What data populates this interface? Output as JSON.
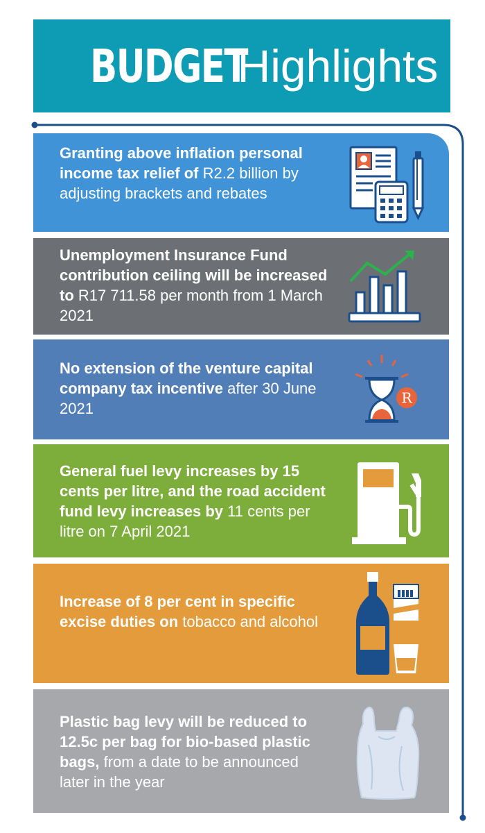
{
  "header": {
    "title_bold": "BUDGET",
    "title_light": "Highlights"
  },
  "colors": {
    "header_bg": "#0d9cb3",
    "line": "#1b4f8c",
    "panel1": "#3f93d6",
    "panel2": "#6c6f73",
    "panel3": "#527eb7",
    "panel4": "#7dae3b",
    "panel5": "#e49b3c",
    "panel6": "#a6a8ab"
  },
  "items": [
    {
      "bold": "Granting above inflation personal income tax relief of",
      "regular": " R2.2 billion by adjusting brackets and rebates",
      "icon": "document-calculator-icon"
    },
    {
      "bold": "Unemployment Insurance Fund contribution ceiling will be increased to",
      "regular": " R17 711.58 per month from 1 March 2021",
      "icon": "bar-chart-growth-icon"
    },
    {
      "bold": "No extension of the venture capital company tax incentive",
      "regular": " after 30 June 2021",
      "icon": "hourglass-rand-icon",
      "icon_text": "R"
    },
    {
      "bold": "General fuel levy increases by 15 cents per litre, and the road accident fund levy increases by",
      "regular": " 11 cents per litre on 7 April 2021",
      "icon": "fuel-pump-icon"
    },
    {
      "bold": "Increase of 8 per cent in specific excise duties on",
      "regular": " tobacco and alcohol",
      "icon": "alcohol-tobacco-icon"
    },
    {
      "bold": "Plastic bag levy will be reduced to 12.5c per bag for bio-based plastic bags,",
      "regular": " from a date to be announced later in the year",
      "icon": "plastic-bag-icon"
    }
  ]
}
